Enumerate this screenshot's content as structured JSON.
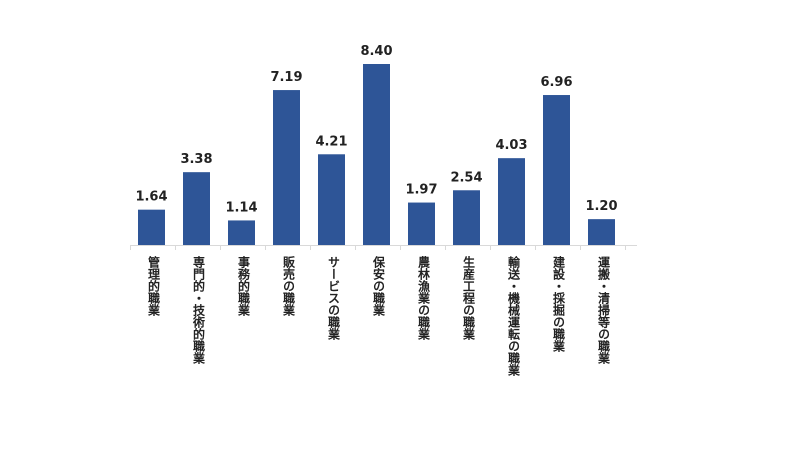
{
  "chart_data": {
    "type": "bar",
    "categories": [
      "管理的職業",
      "専門的・技術的職業",
      "事務的職業",
      "販売の職業",
      "サービスの職業",
      "保安の職業",
      "農林漁業の職業",
      "生産工程の職業",
      "輸送・機械運転の職業",
      "建設・採掘の職業",
      "運搬・清掃等の職業"
    ],
    "values": [
      1.64,
      3.38,
      1.14,
      7.19,
      4.21,
      8.4,
      1.97,
      2.54,
      4.03,
      6.96,
      1.2
    ],
    "value_labels": [
      "1.64",
      "3.38",
      "1.14",
      "7.19",
      "4.21",
      "8.40",
      "1.97",
      "2.54",
      "4.03",
      "6.96",
      "1.20"
    ],
    "ylim": [
      0,
      8.4
    ],
    "grid": false,
    "legend": "none",
    "bar_color": "#2e5597"
  }
}
